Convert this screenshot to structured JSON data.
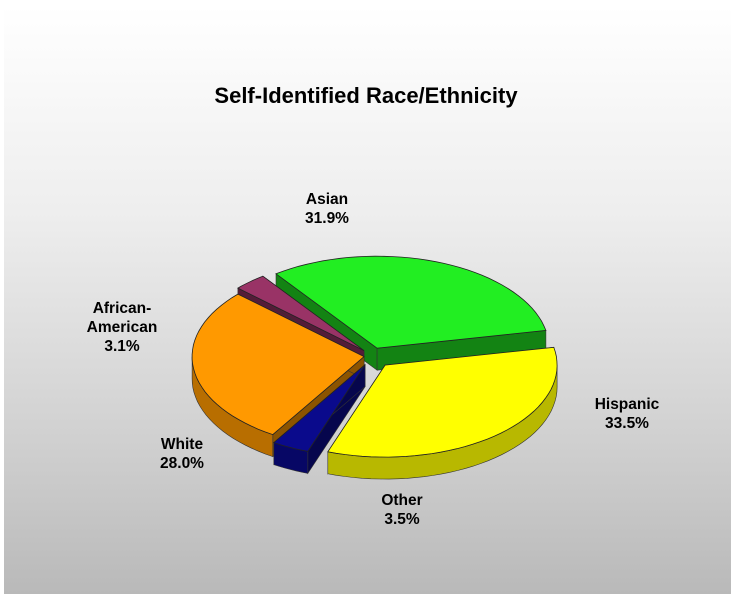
{
  "chart_data": {
    "type": "pie",
    "title": "Self-Identified Race/Ethnicity",
    "three_d": true,
    "exploded": true,
    "legend": "none",
    "slices": [
      {
        "category": "Asian",
        "label_lines": [
          "Asian"
        ],
        "value": 31.9,
        "value_label": "31.9%",
        "color": "#22ee22"
      },
      {
        "category": "Hispanic",
        "label_lines": [
          "Hispanic"
        ],
        "value": 33.5,
        "value_label": "33.5%",
        "color": "#ffff00"
      },
      {
        "category": "Other",
        "label_lines": [
          "Other"
        ],
        "value": 3.5,
        "value_label": "3.5%",
        "color": "#0a0a8c"
      },
      {
        "category": "White",
        "label_lines": [
          "White"
        ],
        "value": 28.0,
        "value_label": "28.0%",
        "color": "#ff9900"
      },
      {
        "category": "African-American",
        "label_lines": [
          "African-",
          "American"
        ],
        "value": 3.1,
        "value_label": "3.1%",
        "color": "#993366"
      }
    ]
  }
}
